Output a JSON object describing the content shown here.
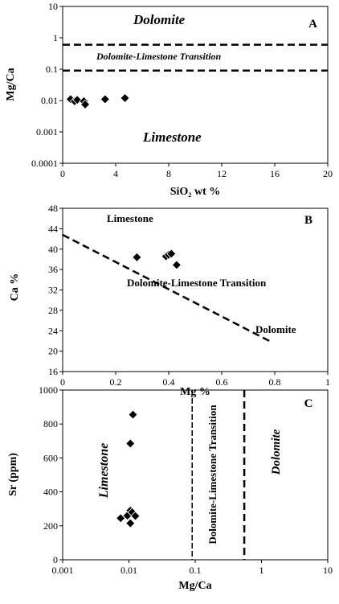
{
  "chart_data": [
    {
      "type": "scatter",
      "panel": "A",
      "xlabel": "SiO₂ wt %",
      "ylabel": "Mg/Ca",
      "xlim": [
        0,
        20
      ],
      "ylim": [
        0.0001,
        10
      ],
      "yscale": "log",
      "xticks": [
        "0",
        "4",
        "8",
        "12",
        "16",
        "20"
      ],
      "yticks": [
        "0.0001",
        "0.001",
        "0.01",
        "0.1",
        "1",
        "10"
      ],
      "grid": false,
      "legend": "none",
      "points": [
        {
          "x": 0.6,
          "y": 0.011
        },
        {
          "x": 0.9,
          "y": 0.0095
        },
        {
          "x": 1.1,
          "y": 0.0105
        },
        {
          "x": 1.6,
          "y": 0.0095
        },
        {
          "x": 1.7,
          "y": 0.0075
        },
        {
          "x": 3.2,
          "y": 0.011
        },
        {
          "x": 4.7,
          "y": 0.012
        }
      ],
      "boundaries": [
        {
          "axis": "y",
          "value": 0.6
        },
        {
          "axis": "y",
          "value": 0.09
        }
      ],
      "annotations": [
        "Dolomite",
        "Dolomite-Limestone Transition",
        "Limestone"
      ]
    },
    {
      "type": "scatter",
      "panel": "B",
      "xlabel": "Mg %",
      "ylabel": "Ca %",
      "xlim": [
        0,
        1
      ],
      "ylim": [
        16,
        48
      ],
      "xticks": [
        "0",
        "0.2",
        "0.4",
        "0.6",
        "0.8",
        "1"
      ],
      "yticks": [
        "16",
        "20",
        "24",
        "28",
        "32",
        "36",
        "40",
        "44",
        "48"
      ],
      "grid": false,
      "legend": "none",
      "points": [
        {
          "x": 0.28,
          "y": 38.4
        },
        {
          "x": 0.39,
          "y": 38.6
        },
        {
          "x": 0.4,
          "y": 38.9
        },
        {
          "x": 0.41,
          "y": 39.1
        },
        {
          "x": 0.43,
          "y": 36.9
        }
      ],
      "boundary_line": [
        {
          "x": 0.0,
          "y": 42.8
        },
        {
          "x": 0.78,
          "y": 22.0
        }
      ],
      "annotations": [
        "Limestone",
        "Dolomite-Limestone Transition",
        "Dolomite"
      ]
    },
    {
      "type": "scatter",
      "panel": "C",
      "xlabel": "Mg/Ca",
      "ylabel": "Sr (ppm)",
      "xlim": [
        0.001,
        10
      ],
      "xscale": "log",
      "ylim": [
        0,
        1000
      ],
      "xticks": [
        "0.001",
        "0.01",
        "0.1",
        "1",
        "10"
      ],
      "yticks": [
        "0",
        "200",
        "400",
        "600",
        "800",
        "1000"
      ],
      "grid": false,
      "legend": "none",
      "points": [
        {
          "x": 0.0075,
          "y": 245
        },
        {
          "x": 0.0095,
          "y": 260
        },
        {
          "x": 0.0105,
          "y": 215
        },
        {
          "x": 0.0105,
          "y": 290
        },
        {
          "x": 0.0112,
          "y": 280
        },
        {
          "x": 0.0125,
          "y": 258
        },
        {
          "x": 0.0105,
          "y": 685
        },
        {
          "x": 0.0115,
          "y": 855
        }
      ],
      "boundaries": [
        {
          "axis": "x",
          "value": 0.09
        },
        {
          "axis": "x",
          "value": 0.55
        }
      ],
      "annotations": [
        "Limestone",
        "Dolomite-Limestone Transition",
        "Dolomite"
      ]
    }
  ]
}
